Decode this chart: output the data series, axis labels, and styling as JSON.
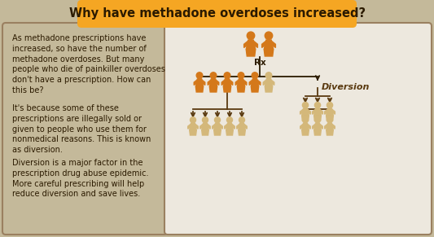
{
  "title": "Why have methadone overdoses increased?",
  "title_bg": "#F5A623",
  "title_color": "#2B1A00",
  "main_bg": "#C4B99A",
  "right_bg": "#EDE8DE",
  "border_color": "#9A8060",
  "orange_person": "#D4781A",
  "light_person": "#D4B87A",
  "dark_line": "#2B1A00",
  "diversion_color": "#5A3A10",
  "rx_label": "Rx",
  "diversion_label": "Diversion",
  "text_color": "#2B1A00",
  "text_paragraph1": "As methadone prescriptions have\nincreased, so have the number of\nmethadone overdoses. But many\npeople who die of painkiller overdoses\ndon't have a prescription. How can\nthis be?",
  "text_paragraph2": "It's because some of these\nprescriptions are illegally sold or\ngiven to people who use them for\nnonmedical reasons. This is known\nas diversion.",
  "text_paragraph3": "Diversion is a major factor in the\nprescription drug abuse epidemic.\nMore careful prescribing will help\nreduce diversion and save lives.",
  "figsize": [
    5.33,
    2.91
  ],
  "dpi": 100
}
